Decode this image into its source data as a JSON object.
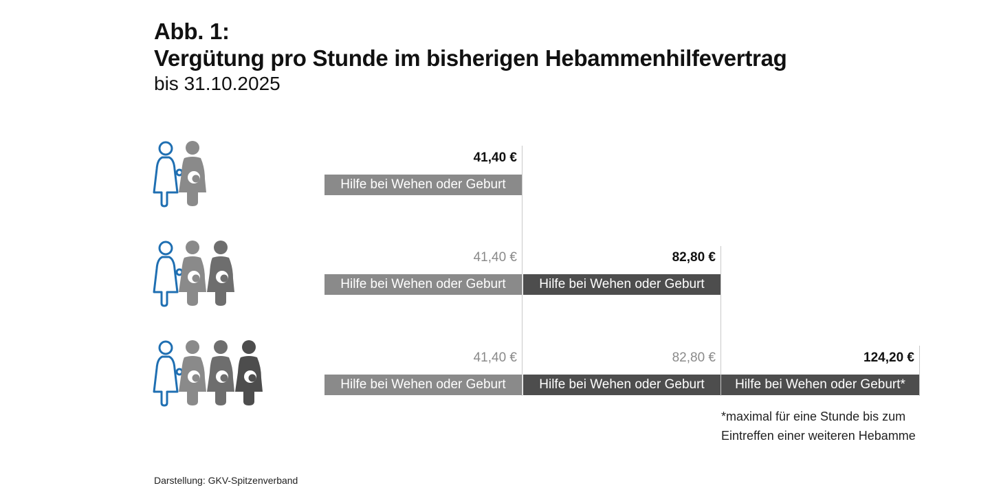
{
  "header": {
    "label": "Abb. 1:",
    "title": "Vergütung pro Stunde im bisherigen Hebammenhilfevertrag",
    "subtitle": "bis 31.10.2025"
  },
  "rows": [
    {
      "women_count": 1,
      "amounts": [
        "41,40 €"
      ],
      "bars": [
        "Hilfe bei Wehen oder Geburt"
      ]
    },
    {
      "women_count": 2,
      "amounts": [
        "41,40 €",
        "82,80 €"
      ],
      "bars": [
        "Hilfe bei Wehen oder Geburt",
        "Hilfe bei Wehen oder Geburt"
      ]
    },
    {
      "women_count": 3,
      "amounts": [
        "41,40 €",
        "82,80 €",
        "124,20 €"
      ],
      "bars": [
        "Hilfe bei Wehen oder Geburt",
        "Hilfe bei Wehen oder Geburt",
        "Hilfe bei Wehen oder Geburt*"
      ]
    }
  ],
  "footnote": "*maximal für eine Stunde bis zum Eintreffen einer weiteren Hebamme",
  "source": "Darstellung: GKV-Spitzenverband",
  "colors": {
    "midwife_outline": "#1f6fb2",
    "pregnant_light": "#8a8a8a",
    "pregnant_mid": "#6e6e6e",
    "pregnant_dark": "#4d4d4d",
    "bar_light": "#8a8a8a",
    "bar_dark": "#4d4d4d"
  },
  "icons": {
    "midwife": "midwife-outline-icon",
    "pregnant": "pregnant-woman-icon"
  }
}
